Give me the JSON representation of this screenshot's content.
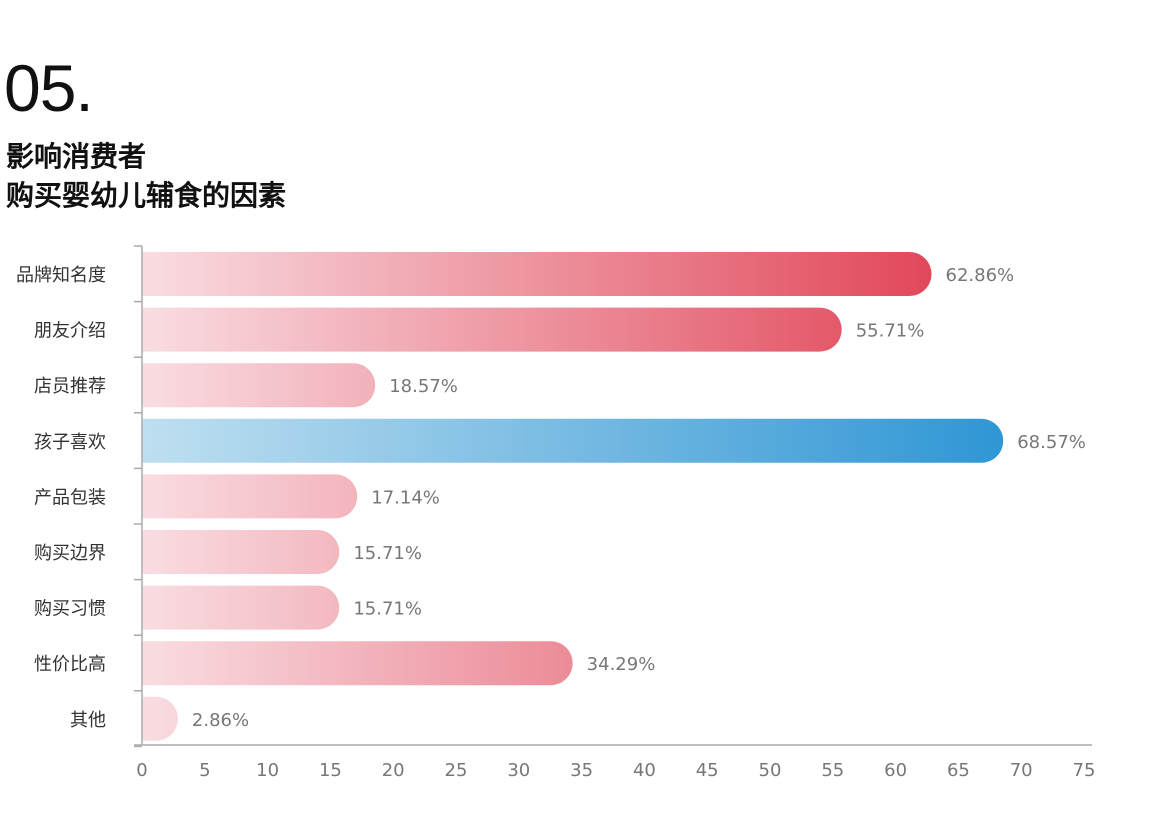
{
  "header": {
    "number": "05.",
    "title_line1": "影响消费者",
    "title_line2": "购买婴幼儿辅食的因素"
  },
  "colors": {
    "red_start": "#f9dde2",
    "red_end": "#df3a4e",
    "blue_start": "#bfdff0",
    "blue_end": "#2f96d5",
    "axis": "#aaaaaa"
  },
  "chart_data": {
    "type": "bar",
    "orientation": "horizontal",
    "categories": [
      "品牌知名度",
      "朋友介绍",
      "店员推荐",
      "孩子喜欢",
      "产品包装",
      "购买边界",
      "购买习惯",
      "性价比高",
      "其他"
    ],
    "values": [
      62.86,
      55.71,
      18.57,
      68.57,
      17.14,
      15.71,
      15.71,
      34.29,
      2.86
    ],
    "value_labels": [
      "62.86%",
      "55.71%",
      "18.57%",
      "68.57%",
      "17.14%",
      "15.71%",
      "15.71%",
      "34.29%",
      "2.86%"
    ],
    "highlight_index": 3,
    "xlim": [
      0,
      75
    ],
    "xticks": [
      "0",
      "5",
      "10",
      "15",
      "20",
      "25",
      "30",
      "35",
      "40",
      "45",
      "50",
      "55",
      "60",
      "65",
      "70",
      "75"
    ],
    "grid": false
  }
}
